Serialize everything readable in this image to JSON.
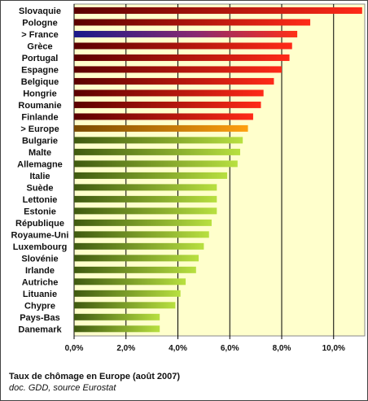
{
  "chart_data": {
    "type": "bar",
    "orientation": "horizontal",
    "categories": [
      "Slovaquie",
      "Pologne",
      "> France",
      "Grèce",
      "Portugal",
      "Espagne",
      "Belgique",
      "Hongrie",
      "Roumanie",
      "Finlande",
      "> Europe",
      "Bulgarie",
      "Malte",
      "Allemagne",
      "Italie",
      "Suède",
      "Lettonie",
      "Estonie",
      "République",
      "Royaume-Uni",
      "Luxembourg",
      "Slovénie",
      "Irlande",
      "Autriche",
      "Lituanie",
      "Chypre",
      "Pays-Bas",
      "Danemark"
    ],
    "values": [
      11.1,
      9.1,
      8.6,
      8.4,
      8.3,
      8.0,
      7.7,
      7.3,
      7.2,
      6.9,
      6.7,
      6.5,
      6.4,
      6.3,
      5.9,
      5.5,
      5.5,
      5.5,
      5.3,
      5.2,
      5.0,
      4.8,
      4.7,
      4.3,
      4.1,
      3.9,
      3.3,
      3.3
    ],
    "colors": [
      "#9a0000",
      "#b00a0a",
      "#2a1e8c",
      "#c01212",
      "#c01212",
      "#c81616",
      "#d01818",
      "#c01212",
      "#c81616",
      "#d01818",
      "#e08a10",
      "#6f9a14",
      "#6f9a14",
      "#6f9a14",
      "#6f9a14",
      "#6f9a14",
      "#6f9a14",
      "#6f9a14",
      "#6f9a14",
      "#6f9a14",
      "#6f9a14",
      "#6f9a14",
      "#6f9a14",
      "#6f9a14",
      "#6f9a14",
      "#6f9a14",
      "#6f9a14",
      "#6f9a14"
    ],
    "xlim": [
      0,
      11.2
    ],
    "xticks": [
      0,
      2,
      4,
      6,
      8,
      10
    ],
    "xtick_labels": [
      "0,0%",
      "2,0%",
      "4,0%",
      "6,0%",
      "8,0%",
      "10,0%"
    ],
    "grid": "vertical",
    "plot_background": "#ffffcc"
  },
  "caption": {
    "title": "Taux de chômage en Europe (août 2007)",
    "source": "doc. GDD, source Eurostat"
  }
}
